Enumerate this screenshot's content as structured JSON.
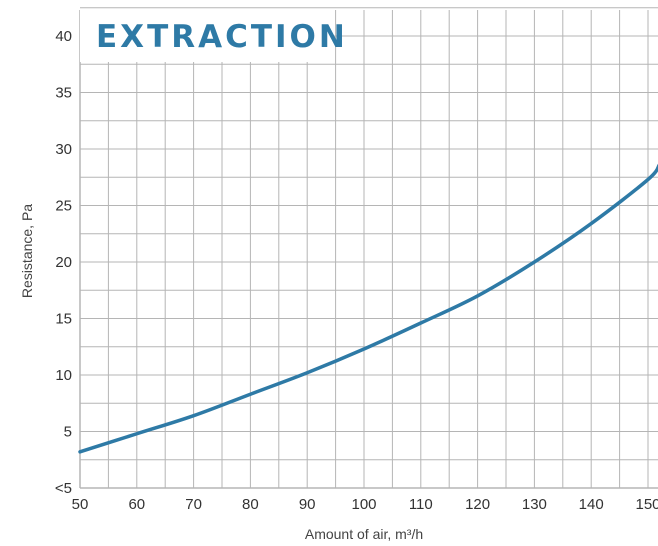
{
  "chart_data": {
    "type": "line",
    "title": "EXTRACTION",
    "xlabel": "Amount of air, m³/h",
    "ylabel": "Resistance, Pa",
    "xlim": [
      50,
      152
    ],
    "ylim": [
      0,
      42
    ],
    "x_ticks": [
      "50",
      "60",
      "70",
      "80",
      "90",
      "100",
      "110",
      "120",
      "130",
      "140",
      "150"
    ],
    "y_ticks": [
      "<5",
      "5",
      "10",
      "15",
      "20",
      "25",
      "30",
      "35",
      "40"
    ],
    "grid": true,
    "series": [
      {
        "color": "#2e7aa6",
        "x": [
          50,
          60,
          70,
          80,
          90,
          100,
          110,
          120,
          130,
          140,
          150,
          152
        ],
        "y": [
          3.2,
          4.8,
          6.4,
          8.3,
          10.2,
          12.3,
          14.6,
          17.0,
          20.0,
          23.4,
          27.3,
          28.6
        ]
      }
    ],
    "colors": {
      "grid": "#b5b5b5",
      "title": "#2e7aa6"
    }
  }
}
